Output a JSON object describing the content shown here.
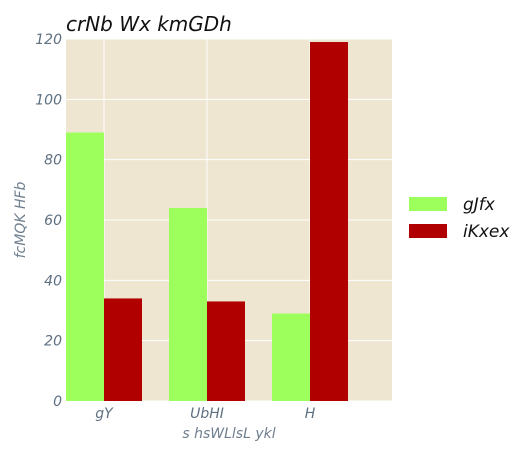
{
  "chart_data": {
    "type": "bar",
    "title": "crNb Wx kmGDh",
    "xlabel": "s hsWLlsL  ykl",
    "ylabel": "fcMQK HFb",
    "categories": [
      "gY",
      "UbHI",
      "H"
    ],
    "series": [
      {
        "name": "gJfx",
        "values": [
          89,
          64,
          29
        ],
        "color": "#9dff5b"
      },
      {
        "name": "iKxex",
        "values": [
          34,
          33,
          119
        ],
        "color": "#b00000"
      }
    ],
    "ylim": [
      0,
      120
    ],
    "yticks": [
      0,
      20,
      40,
      60,
      80,
      100,
      120
    ],
    "grid": true,
    "legend_position": "right",
    "plot_background": "#efe6d2",
    "grid_color": "#ffffff"
  }
}
